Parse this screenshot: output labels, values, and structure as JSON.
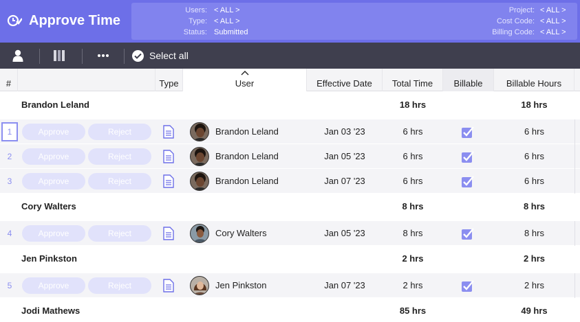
{
  "header": {
    "title": "Approve Time",
    "filters_left": [
      {
        "label": "Users:",
        "value": "< ALL >"
      },
      {
        "label": "Type:",
        "value": "< ALL >"
      },
      {
        "label": "Status:",
        "value": "Submitted"
      }
    ],
    "filters_right": [
      {
        "label": "Project:",
        "value": "< ALL >"
      },
      {
        "label": "Cost Code:",
        "value": "< ALL >"
      },
      {
        "label": "Billing Code:",
        "value": "< ALL >"
      }
    ]
  },
  "toolbar": {
    "select_all_label": "Select all",
    "more_label": "•••"
  },
  "columns": {
    "num": "#",
    "type": "Type",
    "user": "User",
    "effective_date": "Effective Date",
    "total_time": "Total Time",
    "billable": "Billable",
    "billable_hours": "Billable Hours"
  },
  "buttons": {
    "approve": "Approve",
    "reject": "Reject"
  },
  "groups": [
    {
      "name": "Brandon Leland",
      "total": "18 hrs",
      "billable_hours": "18 hrs"
    },
    {
      "name": "Cory Walters",
      "total": "8 hrs",
      "billable_hours": "8 hrs"
    },
    {
      "name": "Jen Pinkston",
      "total": "2 hrs",
      "billable_hours": "2 hrs"
    },
    {
      "name": "Jodi Mathews",
      "total": "85 hrs",
      "billable_hours": "49 hrs"
    }
  ],
  "rows": [
    {
      "num": "1",
      "user": "Brandon Leland",
      "date": "Jan 03 '23",
      "total": "6 hrs",
      "billable": true,
      "billable_hours": "6 hrs"
    },
    {
      "num": "2",
      "user": "Brandon Leland",
      "date": "Jan 05 '23",
      "total": "6 hrs",
      "billable": true,
      "billable_hours": "6 hrs"
    },
    {
      "num": "3",
      "user": "Brandon Leland",
      "date": "Jan 07 '23",
      "total": "6 hrs",
      "billable": true,
      "billable_hours": "6 hrs"
    },
    {
      "num": "4",
      "user": "Cory Walters",
      "date": "Jan 05 '23",
      "total": "8 hrs",
      "billable": true,
      "billable_hours": "8 hrs"
    },
    {
      "num": "5",
      "user": "Jen Pinkston",
      "date": "Jan 07 '23",
      "total": "2 hrs",
      "billable": true,
      "billable_hours": "2 hrs"
    }
  ],
  "colors": {
    "header_bg": "#6d6fe8",
    "filter_box_bg": "#8183ee",
    "toolbar_bg": "#3f3f4e",
    "accent": "#8b8ef0",
    "button_disabled_bg": "#e1e2fb"
  },
  "icons": [
    "clock-check-icon",
    "user-icon",
    "columns-icon",
    "more-icon",
    "check-circle-icon",
    "sort-up-icon",
    "document-icon",
    "checkbox-checked-icon"
  ]
}
